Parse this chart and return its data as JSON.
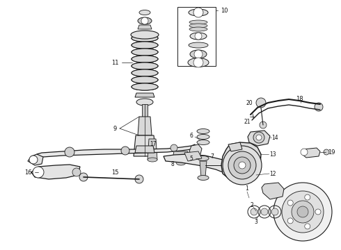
{
  "bg_color": "#ffffff",
  "line_color": "#1a1a1a",
  "label_color": "#111111",
  "figsize": [
    4.9,
    3.6
  ],
  "dpi": 100,
  "xlim": [
    0,
    490
  ],
  "ylim": [
    0,
    360
  ]
}
